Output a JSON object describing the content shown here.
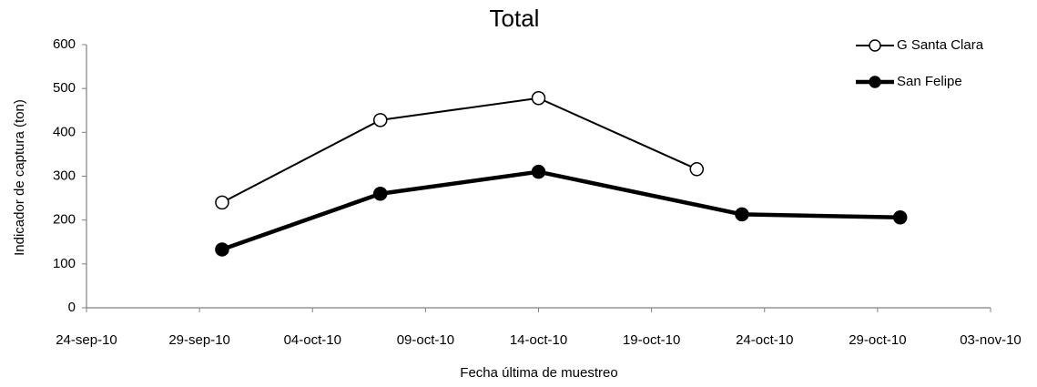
{
  "chart_data": {
    "type": "line",
    "title": "Total",
    "x_label": "Fecha última de muestreo",
    "y_label": "Indicador de captura (ton)",
    "xlim": [
      "2010-09-24",
      "2010-11-03"
    ],
    "xticks": [
      {
        "value": "2010-09-24",
        "label": "24-sep-10"
      },
      {
        "value": "2010-09-29",
        "label": "29-sep-10"
      },
      {
        "value": "2010-10-04",
        "label": "04-oct-10"
      },
      {
        "value": "2010-10-09",
        "label": "09-oct-10"
      },
      {
        "value": "2010-10-14",
        "label": "14-oct-10"
      },
      {
        "value": "2010-10-19",
        "label": "19-oct-10"
      },
      {
        "value": "2010-10-24",
        "label": "24-oct-10"
      },
      {
        "value": "2010-10-29",
        "label": "29-oct-10"
      },
      {
        "value": "2010-11-03",
        "label": "03-nov-10"
      }
    ],
    "ylim": [
      0,
      600
    ],
    "yticks": [
      0,
      100,
      200,
      300,
      400,
      500,
      600
    ],
    "grid": false,
    "legend": "top-right",
    "series": [
      {
        "name": "G Santa Clara",
        "color": "#000000",
        "marker": "open",
        "line_width": 2,
        "x": [
          "2010-09-30",
          "2010-10-07",
          "2010-10-14",
          "2010-10-21"
        ],
        "values": [
          240,
          428,
          478,
          316
        ]
      },
      {
        "name": "San Felipe",
        "color": "#000000",
        "marker": "filled",
        "line_width": 4.5,
        "x": [
          "2010-09-30",
          "2010-10-07",
          "2010-10-14",
          "2010-10-23",
          "2010-10-30"
        ],
        "values": [
          133,
          260,
          310,
          213,
          206
        ]
      }
    ]
  }
}
